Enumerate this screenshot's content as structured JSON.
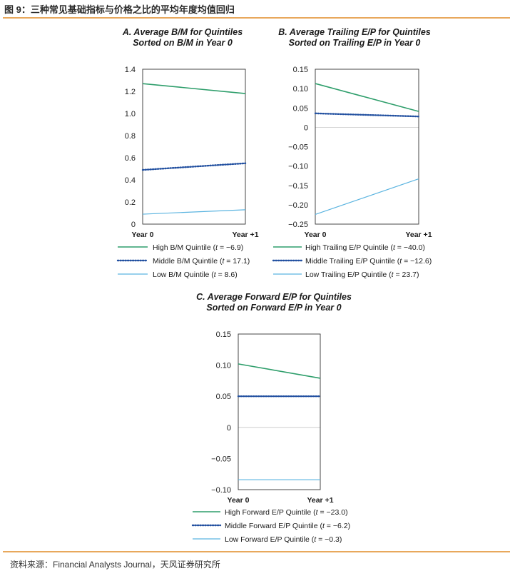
{
  "figure": {
    "title": "图 9：三种常见基础指标与价格之比的平均年度均值回归",
    "source": "资料来源：Financial Analysts Journal，天风证券研究所"
  },
  "chart_data": [
    {
      "type": "line",
      "id": "A",
      "title": [
        "A. Average B/M for Quintiles",
        "Sorted on B/M in Year 0"
      ],
      "categories": [
        "Year 0",
        "Year +1"
      ],
      "ylim": [
        0,
        1.4
      ],
      "yticks": [
        "0",
        "0.2",
        "0.4",
        "0.6",
        "0.8",
        "1.0",
        "1.2",
        "1.4"
      ],
      "ytick_values": [
        0,
        0.2,
        0.4,
        0.6,
        0.8,
        1.0,
        1.2,
        1.4
      ],
      "series": [
        {
          "name": "High B/M Quintile (",
          "t": "t",
          "stat": " = −6.9)",
          "values": [
            1.27,
            1.18
          ],
          "color": "#2e9e6b",
          "style": "solid"
        },
        {
          "name": "Middle B/M Quintile (",
          "t": "t",
          "stat": " = 17.1)",
          "values": [
            0.49,
            0.55
          ],
          "color": "#2250a0",
          "style": "dotted"
        },
        {
          "name": "Low B/M Quintile (",
          "t": "t",
          "stat": " = 8.6)",
          "values": [
            0.09,
            0.13
          ],
          "color": "#5bb4e0",
          "style": "solid"
        }
      ]
    },
    {
      "type": "line",
      "id": "B",
      "title": [
        "B. Average Trailing E/P for Quintiles",
        "Sorted on Trailing E/P in Year 0"
      ],
      "categories": [
        "Year 0",
        "Year +1"
      ],
      "ylim": [
        -0.25,
        0.15
      ],
      "yticks": [
        "−0.25",
        "−0.20",
        "−0.15",
        "−0.10",
        "−0.05",
        "0",
        "0.05",
        "0.10",
        "0.15"
      ],
      "ytick_values": [
        -0.25,
        -0.2,
        -0.15,
        -0.1,
        -0.05,
        0,
        0.05,
        0.1,
        0.15
      ],
      "series": [
        {
          "name": "High Trailing E/P Quintile (",
          "t": "t",
          "stat": " = −40.0)",
          "values": [
            0.113,
            0.041
          ],
          "color": "#2e9e6b",
          "style": "solid"
        },
        {
          "name": "Middle Trailing E/P Quintile (",
          "t": "t",
          "stat": " = −12.6)",
          "values": [
            0.036,
            0.028
          ],
          "color": "#2250a0",
          "style": "dotted"
        },
        {
          "name": "Low Trailing E/P Quintile (",
          "t": "t",
          "stat": " = 23.7)",
          "values": [
            -0.225,
            -0.133
          ],
          "color": "#5bb4e0",
          "style": "solid"
        }
      ]
    },
    {
      "type": "line",
      "id": "C",
      "title": [
        "C. Average Forward E/P for Quintiles",
        "Sorted on Forward E/P in Year 0"
      ],
      "categories": [
        "Year 0",
        "Year +1"
      ],
      "ylim": [
        -0.1,
        0.15
      ],
      "yticks": [
        "−0.10",
        "−0.05",
        "0",
        "0.05",
        "0.10",
        "0.15"
      ],
      "ytick_values": [
        -0.1,
        -0.05,
        0,
        0.05,
        0.1,
        0.15
      ],
      "series": [
        {
          "name": "High Forward E/P Quintile (",
          "t": "t",
          "stat": " = −23.0)",
          "values": [
            0.102,
            0.079
          ],
          "color": "#2e9e6b",
          "style": "solid"
        },
        {
          "name": "Middle Forward E/P Quintile (",
          "t": "t",
          "stat": " = −6.2)",
          "values": [
            0.05,
            0.05
          ],
          "color": "#2250a0",
          "style": "dotted"
        },
        {
          "name": "Low Forward E/P Quintile (",
          "t": "t",
          "stat": " = −0.3)",
          "values": [
            -0.084,
            -0.084
          ],
          "color": "#5bb4e0",
          "style": "solid"
        }
      ]
    }
  ]
}
